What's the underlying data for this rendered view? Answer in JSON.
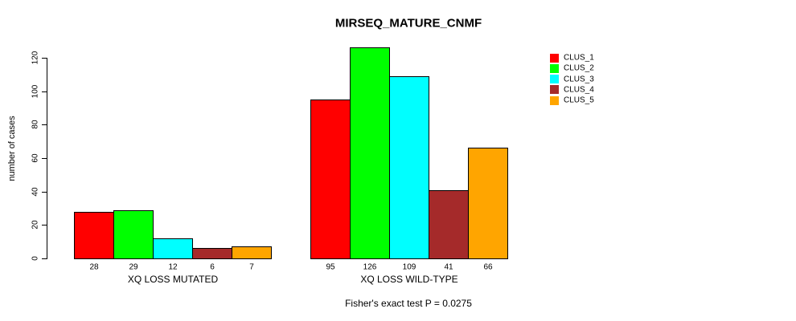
{
  "page": {
    "background": "#ffffff",
    "text_color": "#000000"
  },
  "chart_data": {
    "type": "bar",
    "title": "MIRSEQ_MATURE_CNMF",
    "xlabel": "",
    "ylabel": "number of cases",
    "footer": "Fisher's exact test P = 0.0275",
    "ylim": [
      0,
      120
    ],
    "yticks": [
      0,
      20,
      40,
      60,
      80,
      100,
      120
    ],
    "grid": false,
    "legend_position": "right",
    "bar_value_labels_shown": true,
    "categories": [
      "XQ LOSS MUTATED",
      "XQ LOSS WILD-TYPE"
    ],
    "series": [
      {
        "name": "CLUS_1",
        "color": "#ff0000",
        "values": [
          28,
          95
        ]
      },
      {
        "name": "CLUS_2",
        "color": "#00ff00",
        "values": [
          29,
          126
        ]
      },
      {
        "name": "CLUS_3",
        "color": "#00ffff",
        "values": [
          12,
          109
        ]
      },
      {
        "name": "CLUS_4",
        "color": "#a52a2a",
        "values": [
          6,
          41
        ]
      },
      {
        "name": "CLUS_5",
        "color": "#ffa500",
        "values": [
          7,
          66
        ]
      }
    ],
    "axis_color": "#000000"
  }
}
